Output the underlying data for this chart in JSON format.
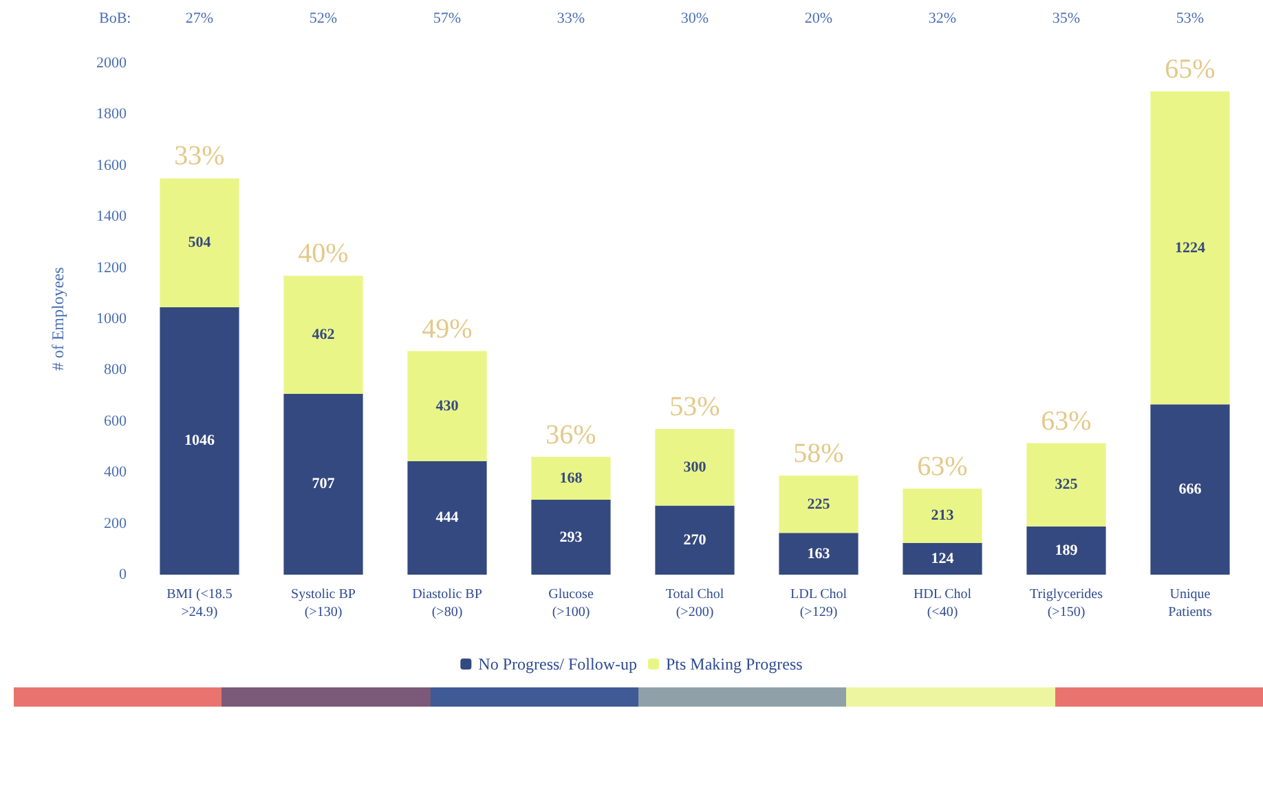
{
  "chart_data": {
    "type": "bar",
    "stacked": true,
    "ylabel": "# of Employees",
    "categories": [
      "BMI (<18.5\n>24.9)",
      "Systolic BP\n(>130)",
      "Diastolic BP\n(>80)",
      "Glucose\n(>100)",
      "Total Chol\n(>200)",
      "LDL Chol\n(>129)",
      "HDL Chol\n(<40)",
      "Triglycerides\n(>150)",
      "Unique\nPatients"
    ],
    "series": [
      {
        "name": "No Progress/ Follow-up",
        "color": "#34497f",
        "values": [
          1046,
          707,
          444,
          293,
          270,
          163,
          124,
          189,
          666
        ]
      },
      {
        "name": "Pts Making Progress",
        "color": "#eaf587",
        "values": [
          504,
          462,
          430,
          168,
          300,
          225,
          213,
          325,
          1224
        ]
      }
    ],
    "data_labels": true,
    "ylim": [
      0,
      2000
    ],
    "yticks": [
      0,
      200,
      400,
      600,
      800,
      1000,
      1200,
      1400,
      1600,
      1800,
      2000
    ],
    "grid": false,
    "legend": "bottom",
    "annotations": [
      "BoB:",
      "27%",
      "52%",
      "57%",
      "33%",
      "30%",
      "20%",
      "32%",
      "35%",
      "53%",
      {
        "text": "33%",
        "x": "BMI (<18.5\n>24.9)",
        "y": 1550
      },
      {
        "text": "40%",
        "x": "Systolic BP\n(>130)",
        "y": 1169
      },
      {
        "text": "49%",
        "x": "Diastolic BP\n(>80)",
        "y": 874
      },
      {
        "text": "36%",
        "x": "Glucose\n(>100)",
        "y": 461
      },
      {
        "text": "53%",
        "x": "Total Chol\n(>200)",
        "y": 570
      },
      {
        "text": "58%",
        "x": "LDL Chol\n(>129)",
        "y": 388
      },
      {
        "text": "63%",
        "x": "HDL Chol\n(<40)",
        "y": 337
      },
      {
        "text": "63%",
        "x": "Triglycerides\n(>150)",
        "y": 514
      },
      {
        "text": "65%",
        "x": "Unique\nPatients",
        "y": 1890
      }
    ]
  }
}
